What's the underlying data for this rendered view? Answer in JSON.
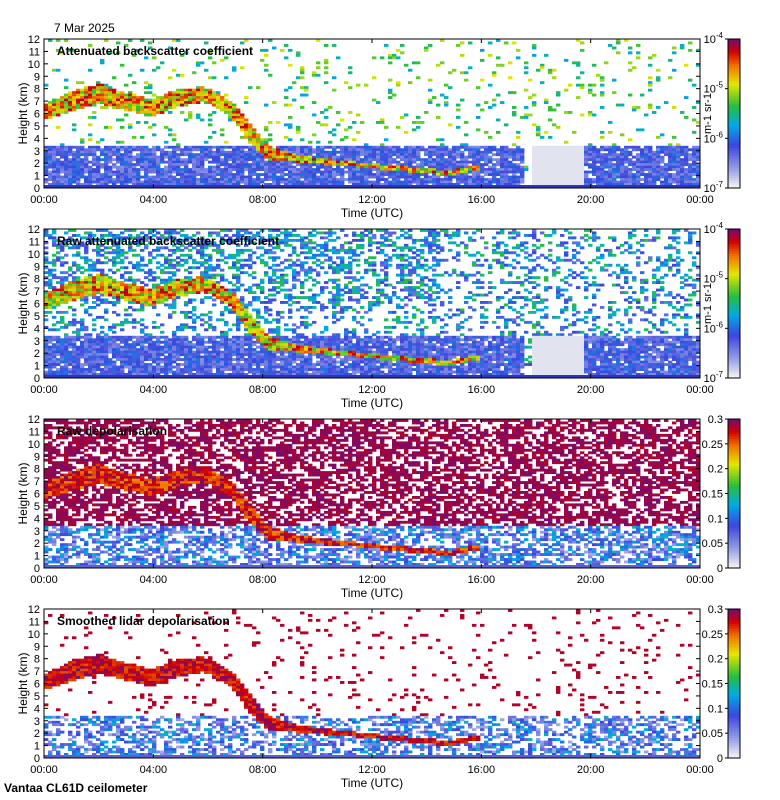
{
  "date": "7 Mar 2025",
  "footer": "Vantaa CL61D ceilometer",
  "colors": {
    "background_blue": "#3a4cd8",
    "white": "#ffffff",
    "purple": "#7a0a6e",
    "magenta": "#9a1090",
    "orange": "#f0a000",
    "red": "#d00000",
    "green": "#30b030",
    "light_gray": "#d8d8d8"
  },
  "chart_data": [
    {
      "type": "heatmap",
      "title": "Attenuated backscatter coefficient",
      "xlabel": "Time (UTC)",
      "ylabel": "Height (km)",
      "x_ticks": [
        "00:00",
        "04:00",
        "08:00",
        "12:00",
        "16:00",
        "20:00",
        "00:00"
      ],
      "y_ticks": [
        "0",
        "1",
        "2",
        "3",
        "4",
        "5",
        "6",
        "7",
        "8",
        "9",
        "10",
        "11",
        "12"
      ],
      "ylim": [
        0,
        12
      ],
      "colorbar": {
        "scale": "log",
        "ticks": [
          "10-7",
          "10-6",
          "10-5",
          "10-4"
        ],
        "tick_values": [
          1e-07,
          1e-06,
          1e-05,
          0.0001
        ],
        "unit": "m-1 sr-1"
      }
    },
    {
      "type": "heatmap",
      "title": "Raw attenuated backscatter coefficient",
      "xlabel": "Time (UTC)",
      "ylabel": "Height (km)",
      "x_ticks": [
        "00:00",
        "04:00",
        "08:00",
        "12:00",
        "16:00",
        "20:00",
        "00:00"
      ],
      "y_ticks": [
        "0",
        "1",
        "2",
        "3",
        "4",
        "5",
        "6",
        "7",
        "8",
        "9",
        "10",
        "11",
        "12"
      ],
      "ylim": [
        0,
        12
      ],
      "colorbar": {
        "scale": "log",
        "ticks": [
          "10-7",
          "10-6",
          "10-5",
          "10-4"
        ],
        "tick_values": [
          1e-07,
          1e-06,
          1e-05,
          0.0001
        ],
        "unit": "m-1 sr-1"
      }
    },
    {
      "type": "heatmap",
      "title": "Raw depolarisation",
      "xlabel": "Time (UTC)",
      "ylabel": "Height (km)",
      "x_ticks": [
        "00:00",
        "04:00",
        "08:00",
        "12:00",
        "16:00",
        "20:00",
        "00:00"
      ],
      "y_ticks": [
        "0",
        "1",
        "2",
        "3",
        "4",
        "5",
        "6",
        "7",
        "8",
        "9",
        "10",
        "11",
        "12"
      ],
      "ylim": [
        0,
        12
      ],
      "colorbar": {
        "scale": "linear",
        "ticks": [
          "0",
          "0.05",
          "0.1",
          "0.15",
          "0.2",
          "0.25",
          "0.3"
        ],
        "tick_values": [
          0,
          0.05,
          0.1,
          0.15,
          0.2,
          0.25,
          0.3
        ],
        "unit": ""
      }
    },
    {
      "type": "heatmap",
      "title": "Smoothed lidar depolarisation",
      "xlabel": "Time (UTC)",
      "ylabel": "Height (km)",
      "x_ticks": [
        "00:00",
        "04:00",
        "08:00",
        "12:00",
        "16:00",
        "20:00",
        "00:00"
      ],
      "y_ticks": [
        "0",
        "1",
        "2",
        "3",
        "4",
        "5",
        "6",
        "7",
        "8",
        "9",
        "10",
        "11",
        "12"
      ],
      "ylim": [
        0,
        12
      ],
      "colorbar": {
        "scale": "linear",
        "ticks": [
          "0",
          "0.05",
          "0.1",
          "0.15",
          "0.2",
          "0.25",
          "0.3"
        ],
        "tick_values": [
          0,
          0.05,
          0.1,
          0.15,
          0.2,
          0.25,
          0.3
        ],
        "unit": ""
      }
    }
  ]
}
